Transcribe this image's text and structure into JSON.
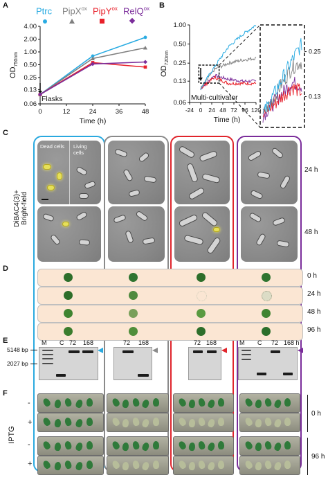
{
  "panels": {
    "a": "A",
    "b": "B",
    "c": "C",
    "d": "D",
    "e": "E",
    "f": "F"
  },
  "legend": [
    {
      "label": "Ptrc",
      "sup": "",
      "color": "#29abe2",
      "marker": "circle"
    },
    {
      "label": "PipX",
      "sup": "ox",
      "color": "#7f7f7f",
      "marker": "triangle"
    },
    {
      "label": "PipY",
      "sup": "ox",
      "color": "#e8202a",
      "marker": "square"
    },
    {
      "label": "RelQ",
      "sup": "ox",
      "color": "#7b2d9b",
      "marker": "diamond"
    }
  ],
  "chart_data": [
    {
      "type": "line",
      "xlabel": "Time (h)",
      "ylabel": "OD",
      "ylabel_sub": "750nm",
      "annotation": "Flasks",
      "yscale": "log",
      "ylim": [
        0.06,
        4.0
      ],
      "yticks": [
        "4.00",
        "2.00",
        "1.00",
        "0.50",
        "0.25",
        "0.13",
        "0.06"
      ],
      "xticks": [
        "0",
        "12",
        "24",
        "36",
        "48"
      ],
      "x": [
        0,
        24,
        48
      ],
      "series": [
        {
          "name": "Ptrc",
          "color": "#29abe2",
          "values": [
            0.1,
            0.8,
            2.2
          ]
        },
        {
          "name": "PipXox",
          "color": "#7f7f7f",
          "values": [
            0.1,
            0.7,
            1.25
          ]
        },
        {
          "name": "PipYox",
          "color": "#e8202a",
          "values": [
            0.1,
            0.56,
            0.44
          ]
        },
        {
          "name": "RelQox",
          "color": "#7b2d9b",
          "values": [
            0.1,
            0.52,
            0.58
          ]
        }
      ]
    },
    {
      "type": "line",
      "xlabel": "Time (h)",
      "ylabel": "OD",
      "ylabel_sub": "720nm",
      "annotation": "Multi-cultivator",
      "yscale": "log",
      "ylim": [
        0.06,
        1.0
      ],
      "yticks": [
        "1.00",
        "0.50",
        "0.25",
        "0.13",
        "0.06"
      ],
      "xticks": [
        "-24",
        "0",
        "24",
        "48",
        "72",
        "96",
        "120"
      ],
      "inset_yticks": [
        "0.25",
        "0.13"
      ],
      "series": [
        {
          "name": "Ptrc",
          "color": "#29abe2",
          "values": [
            0.1,
            0.22,
            0.45,
            0.7,
            1.0
          ]
        },
        {
          "name": "PipXox",
          "color": "#7f7f7f",
          "values": [
            0.1,
            0.2,
            0.25,
            0.28,
            0.3
          ]
        },
        {
          "name": "PipYox",
          "color": "#e8202a",
          "values": [
            0.1,
            0.15,
            0.12,
            0.12,
            0.12
          ]
        },
        {
          "name": "RelQox",
          "color": "#7b2d9b",
          "values": [
            0.1,
            0.16,
            0.14,
            0.13,
            0.13
          ]
        }
      ]
    }
  ],
  "micro": {
    "side": "DiBAC4(3)+\nBright-field",
    "rows": [
      "24 h",
      "48 h"
    ],
    "dead": "Dead cells",
    "living": "Living cells"
  },
  "plates": {
    "rows": [
      "0 h",
      "24 h",
      "48 h",
      "96 h"
    ]
  },
  "gel": {
    "size1": "5148 bp",
    "size2": "2027 bp",
    "lanes_g1": [
      "M",
      "C",
      "72",
      "168"
    ],
    "lanes_g2": [
      "72",
      "168"
    ],
    "lanes_g3": [
      "72",
      "168"
    ],
    "lanes_g4": [
      "M",
      "C",
      "72",
      "168 h"
    ]
  },
  "leaves": {
    "side": "IPTG",
    "signs": [
      "-",
      "+",
      "-",
      "+"
    ],
    "times": [
      "0 h",
      "96 h"
    ]
  }
}
